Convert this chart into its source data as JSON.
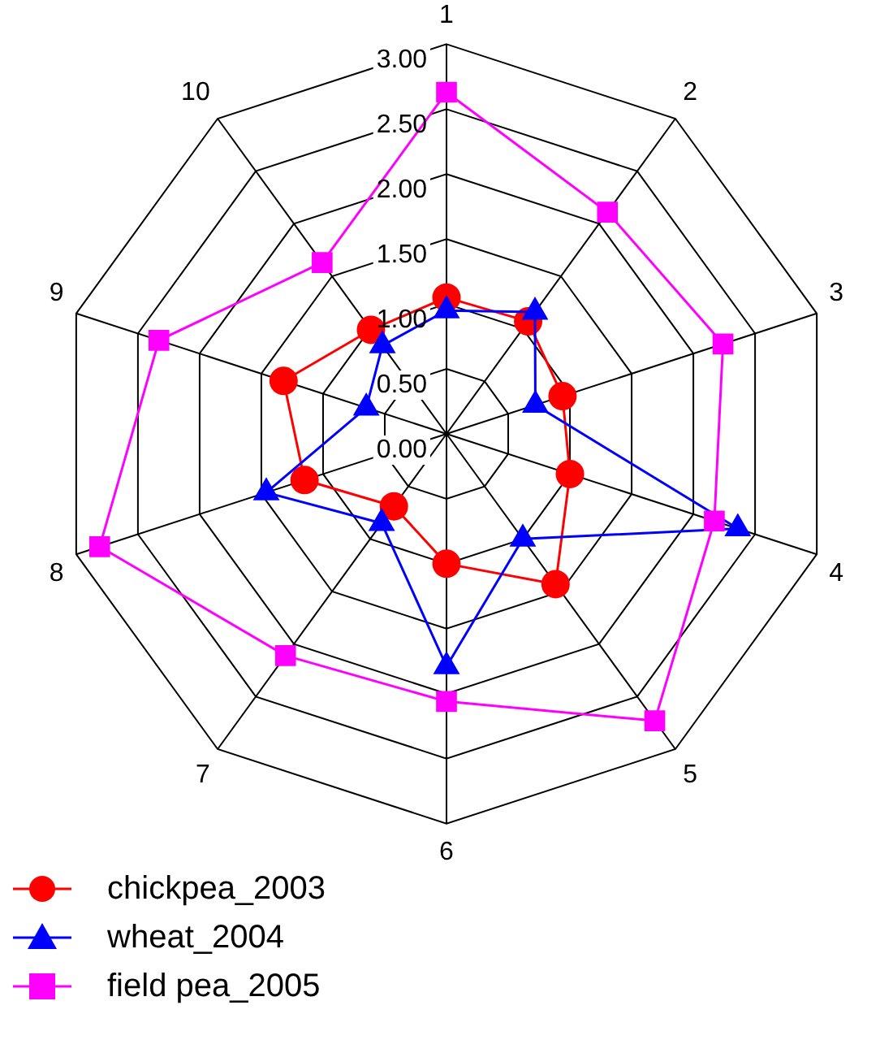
{
  "chart_data": {
    "type": "radar",
    "categories": [
      "1",
      "2",
      "3",
      "4",
      "5",
      "6",
      "7",
      "8",
      "9",
      "10"
    ],
    "ylim": [
      0,
      3
    ],
    "yticks": [
      {
        "value": 0,
        "label": "0.00"
      },
      {
        "value": 0.5,
        "label": "0.50"
      },
      {
        "value": 1,
        "label": "1.00"
      },
      {
        "value": 1.5,
        "label": "1.50"
      },
      {
        "value": 2,
        "label": "2.00"
      },
      {
        "value": 2.5,
        "label": "2.50"
      },
      {
        "value": 3,
        "label": "3.00"
      }
    ],
    "grid": true,
    "legend": "bottom left",
    "line_style": "solid",
    "series": [
      {
        "name": "chickpea_2003",
        "color": "#ff0000",
        "marker": "circle",
        "values": [
          1.05,
          1.07,
          0.94,
          1.0,
          1.43,
          1.0,
          0.69,
          1.15,
          1.32,
          0.99
        ]
      },
      {
        "name": "wheat_2004",
        "color": "#0000ff",
        "marker": "triangle",
        "values": [
          0.95,
          1.16,
          0.72,
          2.36,
          1.0,
          1.79,
          0.85,
          1.46,
          0.65,
          0.84
        ]
      },
      {
        "name": "field pea_2005",
        "color": "#ff00ff",
        "marker": "square",
        "values": [
          2.63,
          2.11,
          2.24,
          2.17,
          2.73,
          2.06,
          2.11,
          2.81,
          2.33,
          1.63
        ]
      }
    ]
  }
}
